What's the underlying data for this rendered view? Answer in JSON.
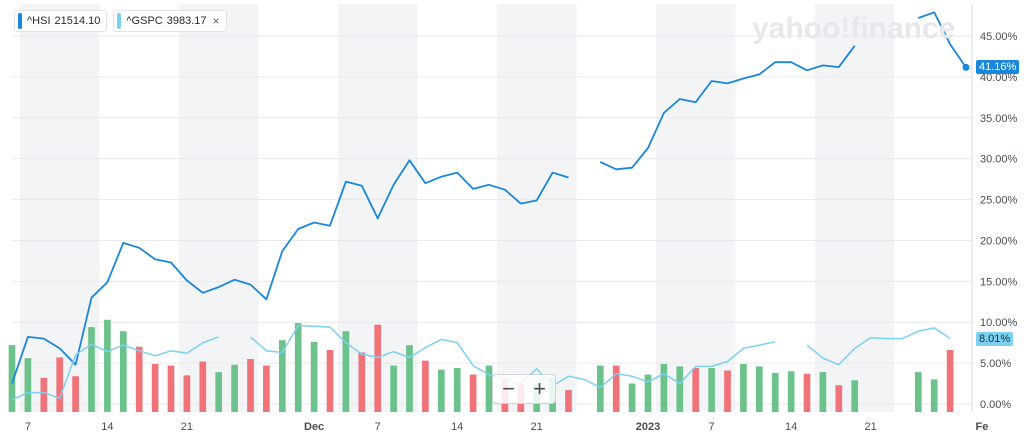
{
  "legend": [
    {
      "symbol": "^HSI",
      "value": "21514.10",
      "color": "#1a86de"
    },
    {
      "symbol": "^GSPC",
      "value": "3983.17",
      "color": "#7cd1f3",
      "close": "×"
    }
  ],
  "logo_text": "yahoo!finance",
  "zoom": {
    "minus": "−",
    "plus": "+"
  },
  "badges": {
    "hsi": "41.16%",
    "gspc": "8.01%"
  },
  "chart_data": {
    "type": "line",
    "y_ticks": [
      "0.00%",
      "5.00%",
      "10.00%",
      "15.00%",
      "20.00%",
      "25.00%",
      "30.00%",
      "35.00%",
      "40.00%",
      "45.00%"
    ],
    "ylim": [
      -1,
      48.5
    ],
    "x_ticks": [
      {
        "label": "7",
        "bold": false,
        "at": 1
      },
      {
        "label": "14",
        "bold": false,
        "at": 6
      },
      {
        "label": "21",
        "bold": false,
        "at": 11
      },
      {
        "label": "Dec",
        "bold": true,
        "at": 19
      },
      {
        "label": "7",
        "bold": false,
        "at": 23
      },
      {
        "label": "14",
        "bold": false,
        "at": 28
      },
      {
        "label": "21",
        "bold": false,
        "at": 33
      },
      {
        "label": "2023",
        "bold": true,
        "at": 40
      },
      {
        "label": "7",
        "bold": false,
        "at": 44
      },
      {
        "label": "14",
        "bold": false,
        "at": 49
      },
      {
        "label": "21",
        "bold": false,
        "at": 54
      },
      {
        "label": "Fe",
        "bold": true,
        "at": 61
      }
    ],
    "series": [
      {
        "name": "^HSI",
        "color": "#1a86de",
        "values": [
          2.5,
          8.2,
          8.0,
          6.8,
          4.8,
          13.0,
          14.9,
          19.7,
          19.1,
          17.7,
          17.3,
          15.1,
          13.6,
          14.3,
          15.2,
          14.6,
          12.8,
          18.7,
          21.4,
          22.2,
          21.8,
          27.2,
          26.7,
          22.7,
          26.8,
          29.8,
          27.0,
          27.8,
          28.3,
          26.3,
          26.8,
          26.2,
          24.5,
          24.9,
          28.3,
          27.7,
          null,
          29.6,
          28.7,
          28.9,
          31.3,
          35.6,
          37.3,
          36.9,
          39.5,
          39.2,
          39.8,
          40.3,
          41.8,
          41.8,
          40.8,
          41.4,
          41.2,
          43.8,
          null,
          null,
          null,
          47.2,
          47.9,
          44.0,
          41.16
        ]
      },
      {
        "name": "^GSPC",
        "color": "#7cd1f3",
        "values": [
          0.5,
          1.4,
          1.4,
          0.7,
          6.0,
          7.3,
          6.4,
          7.2,
          6.5,
          5.9,
          6.5,
          6.2,
          7.5,
          8.2,
          null,
          8.2,
          6.5,
          6.3,
          9.6,
          9.5,
          9.4,
          7.5,
          6.1,
          5.7,
          6.4,
          5.7,
          6.9,
          7.9,
          7.5,
          4.7,
          3.6,
          3.0,
          2.5,
          4.3,
          2.2,
          3.4,
          3.0,
          2.0,
          3.7,
          3.4,
          2.7,
          3.7,
          2.5,
          4.6,
          4.6,
          5.2,
          6.8,
          7.2,
          7.6,
          null,
          7.2,
          5.6,
          4.8,
          6.8,
          8.1,
          8.0,
          8.0,
          8.9,
          9.3,
          8.01,
          null
        ]
      }
    ],
    "volume": [
      {
        "v": 7.2,
        "up": true
      },
      {
        "v": 5.6,
        "up": true
      },
      {
        "v": 3.2,
        "up": false
      },
      {
        "v": 5.7,
        "up": false
      },
      {
        "v": 3.4,
        "up": false
      },
      {
        "v": 9.4,
        "up": true
      },
      {
        "v": 10.3,
        "up": true
      },
      {
        "v": 8.9,
        "up": true
      },
      {
        "v": 7.0,
        "up": false
      },
      {
        "v": 4.9,
        "up": false
      },
      {
        "v": 4.7,
        "up": false
      },
      {
        "v": 3.5,
        "up": false
      },
      {
        "v": 5.2,
        "up": false
      },
      {
        "v": 3.9,
        "up": true
      },
      {
        "v": 4.8,
        "up": true
      },
      {
        "v": 5.5,
        "up": false
      },
      {
        "v": 4.7,
        "up": false
      },
      {
        "v": 7.8,
        "up": true
      },
      {
        "v": 9.9,
        "up": true
      },
      {
        "v": 7.6,
        "up": true
      },
      {
        "v": 6.6,
        "up": false
      },
      {
        "v": 8.9,
        "up": true
      },
      {
        "v": 6.3,
        "up": false
      },
      {
        "v": 9.7,
        "up": false
      },
      {
        "v": 4.7,
        "up": true
      },
      {
        "v": 7.2,
        "up": true
      },
      {
        "v": 5.3,
        "up": false
      },
      {
        "v": 4.2,
        "up": true
      },
      {
        "v": 4.4,
        "up": true
      },
      {
        "v": 3.6,
        "up": false
      },
      {
        "v": 4.7,
        "up": true
      },
      {
        "v": 3.2,
        "up": false
      },
      {
        "v": 2.4,
        "up": false
      },
      {
        "v": 2.5,
        "up": true
      },
      {
        "v": 3.2,
        "up": true
      },
      {
        "v": 1.7,
        "up": false
      },
      {
        "v": null,
        "up": true
      },
      {
        "v": 4.7,
        "up": true
      },
      {
        "v": 4.7,
        "up": false
      },
      {
        "v": 2.5,
        "up": true
      },
      {
        "v": 3.6,
        "up": true
      },
      {
        "v": 4.9,
        "up": true
      },
      {
        "v": 4.6,
        "up": true
      },
      {
        "v": 4.4,
        "up": false
      },
      {
        "v": 4.4,
        "up": true
      },
      {
        "v": 4.1,
        "up": false
      },
      {
        "v": 4.9,
        "up": true
      },
      {
        "v": 4.6,
        "up": true
      },
      {
        "v": 3.8,
        "up": true
      },
      {
        "v": 4.0,
        "up": true
      },
      {
        "v": 3.7,
        "up": false
      },
      {
        "v": 3.9,
        "up": true
      },
      {
        "v": 2.3,
        "up": false
      },
      {
        "v": 2.9,
        "up": true
      },
      {
        "v": null,
        "up": true
      },
      {
        "v": null,
        "up": true
      },
      {
        "v": null,
        "up": true
      },
      {
        "v": 3.9,
        "up": true
      },
      {
        "v": 3.0,
        "up": true
      },
      {
        "v": 6.6,
        "up": false
      },
      {
        "v": null,
        "up": true
      }
    ],
    "colors": {
      "up": "#6cc28b",
      "down": "#f0737a",
      "band": "#f3f4f6",
      "grid": "#e8eaed"
    }
  }
}
